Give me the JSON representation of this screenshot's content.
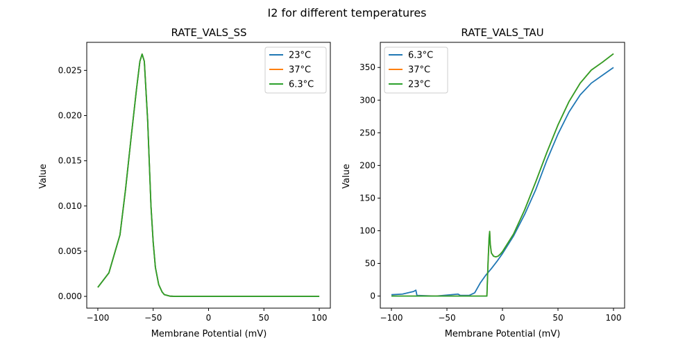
{
  "figure": {
    "suptitle": "I2 for different temperatures"
  },
  "chart_data": [
    {
      "type": "line",
      "title": "RATE_VALS_SS",
      "xlabel": "Membrane Potential (mV)",
      "ylabel": "Value",
      "xlim": [
        -110,
        110
      ],
      "ylim": [
        -0.0013,
        0.0281
      ],
      "xticks": [
        -100,
        -50,
        0,
        50,
        100
      ],
      "xtick_labels": [
        "−100",
        "−50",
        "0",
        "50",
        "100"
      ],
      "yticks": [
        0.0,
        0.005,
        0.01,
        0.015,
        0.02,
        0.025
      ],
      "ytick_labels": [
        "0.000",
        "0.005",
        "0.010",
        "0.015",
        "0.020",
        "0.025"
      ],
      "grid": false,
      "legend": "top-right",
      "series": [
        {
          "name": "23°C",
          "color": "#1f77b4",
          "x": [
            -100,
            -90,
            -80,
            -75,
            -70,
            -65,
            -62,
            -60,
            -58,
            -55,
            -52,
            -50,
            -48,
            -45,
            -42,
            -40,
            -35,
            -30,
            -20,
            0,
            50,
            100
          ],
          "y": [
            0.001,
            0.0026,
            0.0068,
            0.0118,
            0.0175,
            0.023,
            0.026,
            0.0268,
            0.026,
            0.0195,
            0.01,
            0.006,
            0.0032,
            0.0013,
            0.0005,
            0.0002,
            3e-05,
            0.0,
            0.0,
            0.0,
            0.0,
            0.0
          ]
        },
        {
          "name": "37°C",
          "color": "#ff7f0e",
          "x": [
            -100,
            -90,
            -80,
            -75,
            -70,
            -65,
            -62,
            -60,
            -58,
            -55,
            -52,
            -50,
            -48,
            -45,
            -42,
            -40,
            -35,
            -30,
            -20,
            0,
            50,
            100
          ],
          "y": [
            0.001,
            0.0026,
            0.0068,
            0.0118,
            0.0175,
            0.023,
            0.026,
            0.0268,
            0.026,
            0.0195,
            0.01,
            0.006,
            0.0032,
            0.0013,
            0.0005,
            0.0002,
            3e-05,
            0.0,
            0.0,
            0.0,
            0.0,
            0.0
          ]
        },
        {
          "name": "6.3°C",
          "color": "#2ca02c",
          "x": [
            -100,
            -90,
            -80,
            -75,
            -70,
            -65,
            -62,
            -60,
            -58,
            -55,
            -52,
            -50,
            -48,
            -45,
            -42,
            -40,
            -35,
            -30,
            -20,
            0,
            50,
            100
          ],
          "y": [
            0.001,
            0.0026,
            0.0068,
            0.0118,
            0.0175,
            0.023,
            0.026,
            0.0268,
            0.026,
            0.0195,
            0.01,
            0.006,
            0.0032,
            0.0013,
            0.0005,
            0.0002,
            3e-05,
            0.0,
            0.0,
            0.0,
            0.0,
            0.0
          ]
        }
      ]
    },
    {
      "type": "line",
      "title": "RATE_VALS_TAU",
      "xlabel": "Membrane Potential (mV)",
      "ylabel": "Value",
      "xlim": [
        -110,
        110
      ],
      "ylim": [
        -18.5,
        388.5
      ],
      "xticks": [
        -100,
        -50,
        0,
        50,
        100
      ],
      "xtick_labels": [
        "−100",
        "−50",
        "0",
        "50",
        "100"
      ],
      "yticks": [
        0,
        50,
        100,
        150,
        200,
        250,
        300,
        350
      ],
      "ytick_labels": [
        "0",
        "50",
        "100",
        "150",
        "200",
        "250",
        "300",
        "350"
      ],
      "grid": false,
      "legend": "top-left",
      "series": [
        {
          "name": "6.3°C",
          "color": "#1f77b4",
          "x": [
            -100,
            -90,
            -85,
            -80,
            -78,
            -77,
            -60,
            -40,
            -38,
            -30,
            -25,
            -20,
            -15,
            -10,
            -5,
            0,
            10,
            20,
            30,
            40,
            50,
            60,
            70,
            80,
            90,
            100
          ],
          "y": [
            2,
            3,
            5,
            7,
            9,
            1,
            0,
            3,
            1,
            1,
            5,
            20,
            32,
            42,
            53,
            65,
            92,
            125,
            163,
            208,
            248,
            282,
            308,
            326,
            338,
            350
          ]
        },
        {
          "name": "37°C",
          "color": "#ff7f0e",
          "x": [
            -100,
            -80,
            -60,
            -40,
            -20,
            -14,
            -13,
            -12,
            -11.5,
            -11,
            -10,
            -8,
            -6,
            -4,
            -2,
            0,
            10,
            20,
            30,
            40,
            50,
            60,
            70,
            80,
            90,
            100
          ],
          "y": [
            0,
            0,
            0,
            0,
            0,
            0,
            50,
            90,
            99,
            80,
            66,
            61,
            60,
            61,
            64,
            68,
            95,
            132,
            175,
            220,
            262,
            298,
            326,
            346,
            358,
            371
          ]
        },
        {
          "name": "23°C",
          "color": "#2ca02c",
          "x": [
            -100,
            -80,
            -60,
            -40,
            -20,
            -14,
            -13,
            -12,
            -11.5,
            -11,
            -10,
            -8,
            -6,
            -4,
            -2,
            0,
            10,
            20,
            30,
            40,
            50,
            60,
            70,
            80,
            90,
            100
          ],
          "y": [
            0,
            0,
            0,
            0,
            0,
            0,
            50,
            90,
            99,
            80,
            66,
            61,
            60,
            61,
            64,
            68,
            95,
            132,
            175,
            220,
            262,
            298,
            326,
            346,
            358,
            371
          ]
        }
      ]
    }
  ]
}
